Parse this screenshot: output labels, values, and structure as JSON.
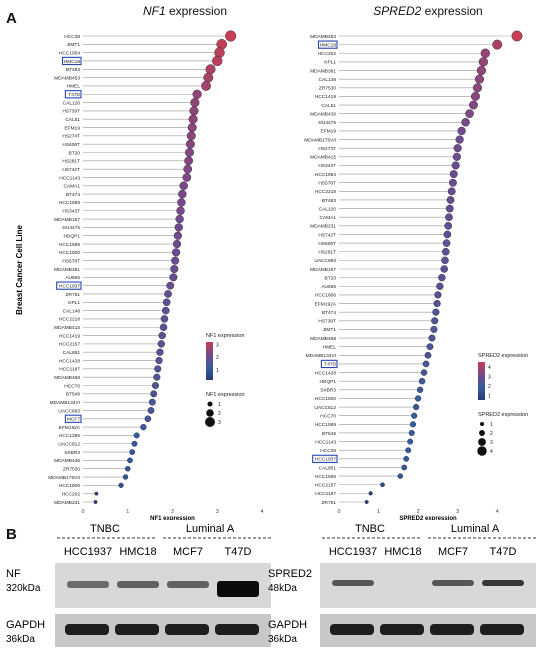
{
  "figure": {
    "panel_a_label": "A",
    "panel_b_label": "B",
    "y_axis_label": "Breast Cancer Cell Line"
  },
  "chart_data": [
    {
      "type": "scatter",
      "gene": "NF1",
      "title_suffix": "expression",
      "xlabel": "NF1 expression",
      "xlim": [
        0,
        4
      ],
      "xticks": [
        0,
        1,
        2,
        3,
        4
      ],
      "legend_color_title": "NF1 expression",
      "legend_color_ticks": [
        3,
        2,
        1
      ],
      "legend_size_title": "NF1 expression",
      "legend_size_values": [
        1,
        2,
        3
      ],
      "color_range": [
        0.2,
        3.2
      ],
      "highlighted": [
        "HMC18",
        "T47D",
        "HCC1937",
        "MCF7"
      ],
      "categories": [
        "HCC38",
        "JIMT1",
        "HCC1954",
        "HMC18",
        "BT483",
        "MDAMB453",
        "HMEL",
        "T47D",
        "CAL120",
        "HS739T",
        "CAL51",
        "EFM19",
        "HS274T",
        "HS606T",
        "BT20",
        "HS281T",
        "HS742T",
        "HCC1143",
        "CAMA1",
        "BT474",
        "HCC1569",
        "HS343T",
        "MDAMB157",
        "DU4475",
        "HDQP1",
        "HCC1599",
        "HCC1500",
        "HS578T",
        "MDAMB361",
        "AU565",
        "HCC1937",
        "ZR751",
        "KPL1",
        "CAL148",
        "HCC2218",
        "MDAMB415",
        "HCC1419",
        "HCC2157",
        "CAL851",
        "HCC1428",
        "HCC1187",
        "MDAMB468",
        "HCC70",
        "BT549",
        "MDAMB134VI",
        "UACC893",
        "MCF7",
        "EFM192A",
        "HCC1395",
        "UACC812",
        "SKBR3",
        "MDAMB436",
        "ZR7530",
        "MDAMB175VII",
        "HCC1806",
        "HCC202",
        "MDAMB231"
      ],
      "values": [
        3.3,
        3.1,
        3.05,
        3.0,
        2.85,
        2.8,
        2.75,
        2.55,
        2.5,
        2.48,
        2.46,
        2.44,
        2.42,
        2.4,
        2.38,
        2.36,
        2.34,
        2.32,
        2.25,
        2.22,
        2.2,
        2.18,
        2.16,
        2.14,
        2.12,
        2.1,
        2.08,
        2.06,
        2.04,
        2.02,
        1.95,
        1.9,
        1.87,
        1.85,
        1.82,
        1.8,
        1.77,
        1.75,
        1.72,
        1.7,
        1.67,
        1.65,
        1.62,
        1.58,
        1.55,
        1.52,
        1.45,
        1.35,
        1.2,
        1.15,
        1.1,
        1.05,
        1.0,
        0.95,
        0.85,
        0.3,
        0.28
      ]
    },
    {
      "type": "scatter",
      "gene": "SPRED2",
      "title_suffix": "expression",
      "xlabel": "SPRED2 expression",
      "xlim": [
        0,
        4.5
      ],
      "xticks": [
        0,
        1,
        2,
        3,
        4
      ],
      "legend_color_title": "SPRED2 expression",
      "legend_color_ticks": [
        4,
        3,
        2,
        1
      ],
      "legend_size_title": "SPRED2 expression",
      "legend_size_values": [
        1,
        2,
        3,
        4
      ],
      "color_range": [
        0.5,
        4.5
      ],
      "highlighted": [
        "HMC18",
        "T47D",
        "HCC1937"
      ],
      "categories": [
        "MDAMB453",
        "HMC18",
        "HCC202",
        "KPL1",
        "MDAMB361",
        "CAL148",
        "ZR7530",
        "HCC1419",
        "CAL51",
        "MDAMB436",
        "DU4475",
        "EFM19",
        "MDAMB175VII",
        "HS274T",
        "MDAMB415",
        "HS343T",
        "HCC1954",
        "HS578T",
        "HCC2218",
        "BT483",
        "CAL120",
        "CAMA1",
        "MDAMB231",
        "HS742T",
        "HS606T",
        "HS281T",
        "UACC893",
        "MDAMB157",
        "BT20",
        "AU565",
        "HCC1806",
        "EFM192A",
        "BT474",
        "HS739T",
        "JIMT1",
        "MDAMB468",
        "HMEL",
        "MDAMB134VI",
        "T47D",
        "HCC1428",
        "HDQP1",
        "SKBR3",
        "HCC1500",
        "UACC812",
        "HCC70",
        "HCC1599",
        "BT549",
        "HCC1143",
        "HCC38",
        "HCC1937",
        "CAL851",
        "HCC1569",
        "HCC2157",
        "HCC1187",
        "ZR751"
      ],
      "values": [
        4.5,
        4.0,
        3.7,
        3.65,
        3.6,
        3.55,
        3.5,
        3.45,
        3.4,
        3.3,
        3.2,
        3.1,
        3.05,
        3.0,
        2.98,
        2.95,
        2.9,
        2.88,
        2.85,
        2.82,
        2.8,
        2.78,
        2.76,
        2.74,
        2.72,
        2.7,
        2.68,
        2.66,
        2.6,
        2.55,
        2.5,
        2.48,
        2.45,
        2.42,
        2.4,
        2.35,
        2.3,
        2.25,
        2.2,
        2.15,
        2.1,
        2.05,
        2.0,
        1.95,
        1.9,
        1.87,
        1.84,
        1.8,
        1.75,
        1.7,
        1.65,
        1.55,
        1.1,
        0.8,
        0.7
      ]
    }
  ],
  "blots": [
    {
      "group1": "TNBC",
      "group2": "Luminal A",
      "lanes": [
        "HCC1937",
        "HMC18",
        "MCF7",
        "T47D"
      ],
      "protein_label": "NF",
      "protein_size": "320kDa",
      "loading_label": "GAPDH",
      "loading_size": "36kDa"
    },
    {
      "group1": "TNBC",
      "group2": "Luminal A",
      "lanes": [
        "HCC1937",
        "HMC18",
        "MCF7",
        "T47D"
      ],
      "protein_label": "SPRED2",
      "protein_size": "48kDa",
      "loading_label": "GAPDH",
      "loading_size": "36kDa"
    }
  ]
}
